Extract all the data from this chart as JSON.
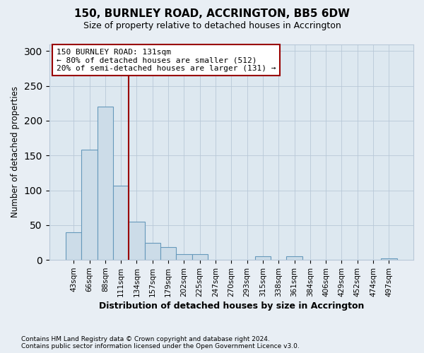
{
  "title1": "150, BURNLEY ROAD, ACCRINGTON, BB5 6DW",
  "title2": "Size of property relative to detached houses in Accrington",
  "xlabel": "Distribution of detached houses by size in Accrington",
  "ylabel": "Number of detached properties",
  "bins": [
    "43sqm",
    "66sqm",
    "88sqm",
    "111sqm",
    "134sqm",
    "157sqm",
    "179sqm",
    "202sqm",
    "225sqm",
    "247sqm",
    "270sqm",
    "293sqm",
    "315sqm",
    "338sqm",
    "361sqm",
    "384sqm",
    "406sqm",
    "429sqm",
    "452sqm",
    "474sqm",
    "497sqm"
  ],
  "values": [
    40,
    158,
    220,
    107,
    55,
    25,
    18,
    8,
    8,
    0,
    0,
    0,
    5,
    0,
    5,
    0,
    0,
    0,
    0,
    0,
    2
  ],
  "bar_color": "#ccdce8",
  "bar_edge_color": "#6699bb",
  "vline_color": "#990000",
  "vline_x": 3.5,
  "annotation_title": "150 BURNLEY ROAD: 131sqm",
  "annotation_line1": "← 80% of detached houses are smaller (512)",
  "annotation_line2": "20% of semi-detached houses are larger (131) →",
  "annotation_box_color": "#ffffff",
  "annotation_edge_color": "#990000",
  "ylim": [
    0,
    310
  ],
  "yticks": [
    0,
    50,
    100,
    150,
    200,
    250,
    300
  ],
  "footnote1": "Contains HM Land Registry data © Crown copyright and database right 2024.",
  "footnote2": "Contains public sector information licensed under the Open Government Licence v3.0.",
  "bg_color": "#e8eef4",
  "plot_bg_color": "#dde8f0",
  "grid_color": "#b8c8d8"
}
